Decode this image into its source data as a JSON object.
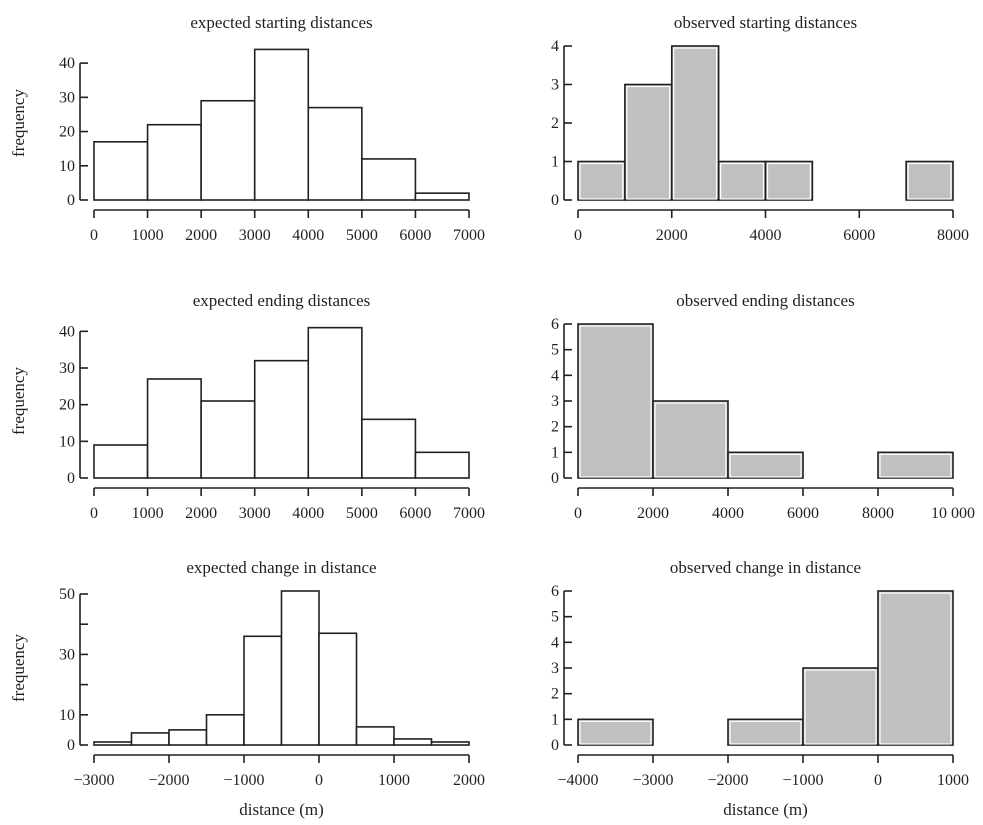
{
  "chart_data": [
    {
      "type": "bar",
      "title": "expected starting distances",
      "ylabel": "frequency",
      "xlabel": "",
      "bin_edges": [
        0,
        1000,
        2000,
        3000,
        4000,
        5000,
        6000,
        7000
      ],
      "values": [
        17,
        22,
        29,
        44,
        27,
        12,
        2
      ],
      "xlim": [
        0,
        7000
      ],
      "ylim": [
        0,
        45
      ],
      "xticks": [
        0,
        1000,
        2000,
        3000,
        4000,
        5000,
        6000,
        7000
      ],
      "xtick_labels": [
        "0",
        "1000",
        "2000",
        "3000",
        "4000",
        "5000",
        "6000",
        "7000"
      ],
      "yticks": [
        0,
        10,
        20,
        30,
        40
      ],
      "ytick_labels": [
        "0",
        "10",
        "20",
        "30",
        "40"
      ],
      "fill": "#ffffff",
      "grid": false
    },
    {
      "type": "bar",
      "title": "observed starting distances",
      "ylabel": "",
      "xlabel": "",
      "bin_edges": [
        0,
        1000,
        2000,
        3000,
        4000,
        5000,
        6000,
        7000,
        8000
      ],
      "values": [
        1,
        3,
        4,
        1,
        1,
        0,
        0,
        1
      ],
      "xlim": [
        0,
        8000
      ],
      "ylim": [
        0,
        4
      ],
      "xticks": [
        0,
        2000,
        4000,
        6000,
        8000
      ],
      "xtick_labels": [
        "0",
        "2000",
        "4000",
        "6000",
        "8000"
      ],
      "yticks": [
        0,
        1,
        2,
        3,
        4
      ],
      "ytick_labels": [
        "0",
        "1",
        "2",
        "3",
        "4"
      ],
      "fill": "#bfc0c2",
      "grid": false
    },
    {
      "type": "bar",
      "title": "expected ending distances",
      "ylabel": "frequency",
      "xlabel": "",
      "bin_edges": [
        0,
        1000,
        2000,
        3000,
        4000,
        5000,
        6000,
        7000
      ],
      "values": [
        9,
        27,
        21,
        32,
        41,
        16,
        7
      ],
      "xlim": [
        0,
        7000
      ],
      "ylim": [
        0,
        42
      ],
      "xticks": [
        0,
        1000,
        2000,
        3000,
        4000,
        5000,
        6000,
        7000
      ],
      "xtick_labels": [
        "0",
        "1000",
        "2000",
        "3000",
        "4000",
        "5000",
        "6000",
        "7000"
      ],
      "yticks": [
        0,
        10,
        20,
        30,
        40
      ],
      "ytick_labels": [
        "0",
        "10",
        "20",
        "30",
        "40"
      ],
      "fill": "#ffffff",
      "grid": false
    },
    {
      "type": "bar",
      "title": "observed ending distances",
      "ylabel": "",
      "xlabel": "",
      "bin_edges": [
        0,
        2000,
        4000,
        6000,
        8000,
        10000
      ],
      "values": [
        6,
        3,
        1,
        0,
        1
      ],
      "xlim": [
        0,
        10000
      ],
      "ylim": [
        0,
        6
      ],
      "xticks": [
        0,
        2000,
        4000,
        6000,
        8000,
        10000
      ],
      "xtick_labels": [
        "0",
        "2000",
        "4000",
        "6000",
        "8000",
        "10 000"
      ],
      "yticks": [
        0,
        1,
        2,
        3,
        4,
        5,
        6
      ],
      "ytick_labels": [
        "0",
        "1",
        "2",
        "3",
        "4",
        "5",
        "6"
      ],
      "fill": "#bfc0c2",
      "grid": false
    },
    {
      "type": "bar",
      "title": "expected change in distance",
      "ylabel": "frequency",
      "xlabel": "distance (m)",
      "bin_edges": [
        -3000,
        -2500,
        -2000,
        -1500,
        -1000,
        -500,
        0,
        500,
        1000,
        1500,
        2000
      ],
      "values": [
        1,
        4,
        5,
        10,
        36,
        51,
        37,
        6,
        2,
        1
      ],
      "xlim": [
        -3000,
        2000
      ],
      "ylim": [
        0,
        51
      ],
      "xticks": [
        -3000,
        -2000,
        -1000,
        0,
        1000,
        2000
      ],
      "xtick_labels": [
        "−3000",
        "−2000",
        "−1000",
        "0",
        "1000",
        "2000"
      ],
      "yticks": [
        0,
        10,
        20,
        30,
        40,
        50
      ],
      "ytick_labels": [
        "0",
        "10",
        "",
        "30",
        "",
        "50"
      ],
      "fill": "#ffffff",
      "grid": false
    },
    {
      "type": "bar",
      "title": "observed change in distance",
      "ylabel": "",
      "xlabel": "distance (m)",
      "bin_edges": [
        -4000,
        -3000,
        -2000,
        -1000,
        0,
        1000
      ],
      "values": [
        1,
        0,
        1,
        3,
        6
      ],
      "xlim": [
        -4000,
        1000
      ],
      "ylim": [
        0,
        6
      ],
      "xticks": [
        -4000,
        -3000,
        -2000,
        -1000,
        0,
        1000
      ],
      "xtick_labels": [
        "−4000",
        "−3000",
        "−2000",
        "−1000",
        "0",
        "1000"
      ],
      "yticks": [
        0,
        1,
        2,
        3,
        4,
        5,
        6
      ],
      "ytick_labels": [
        "0",
        "1",
        "2",
        "3",
        "4",
        "5",
        "6"
      ],
      "fill": "#bfc0c2",
      "grid": false
    }
  ]
}
